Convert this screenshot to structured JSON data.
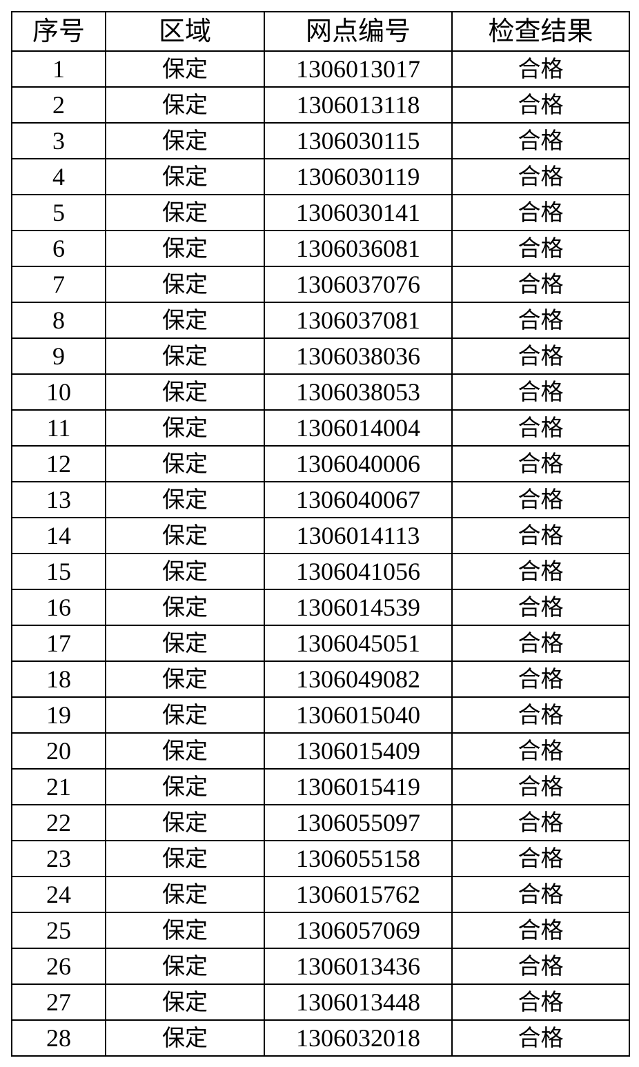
{
  "table": {
    "headers": [
      "序号",
      "区域",
      "网点编号",
      "检查结果"
    ],
    "rows": [
      [
        "1",
        "保定",
        "1306013017",
        "合格"
      ],
      [
        "2",
        "保定",
        "1306013118",
        "合格"
      ],
      [
        "3",
        "保定",
        "1306030115",
        "合格"
      ],
      [
        "4",
        "保定",
        "1306030119",
        "合格"
      ],
      [
        "5",
        "保定",
        "1306030141",
        "合格"
      ],
      [
        "6",
        "保定",
        "1306036081",
        "合格"
      ],
      [
        "7",
        "保定",
        "1306037076",
        "合格"
      ],
      [
        "8",
        "保定",
        "1306037081",
        "合格"
      ],
      [
        "9",
        "保定",
        "1306038036",
        "合格"
      ],
      [
        "10",
        "保定",
        "1306038053",
        "合格"
      ],
      [
        "11",
        "保定",
        "1306014004",
        "合格"
      ],
      [
        "12",
        "保定",
        "1306040006",
        "合格"
      ],
      [
        "13",
        "保定",
        "1306040067",
        "合格"
      ],
      [
        "14",
        "保定",
        "1306014113",
        "合格"
      ],
      [
        "15",
        "保定",
        "1306041056",
        "合格"
      ],
      [
        "16",
        "保定",
        "1306014539",
        "合格"
      ],
      [
        "17",
        "保定",
        "1306045051",
        "合格"
      ],
      [
        "18",
        "保定",
        "1306049082",
        "合格"
      ],
      [
        "19",
        "保定",
        "1306015040",
        "合格"
      ],
      [
        "20",
        "保定",
        "1306015409",
        "合格"
      ],
      [
        "21",
        "保定",
        "1306015419",
        "合格"
      ],
      [
        "22",
        "保定",
        "1306055097",
        "合格"
      ],
      [
        "23",
        "保定",
        "1306055158",
        "合格"
      ],
      [
        "24",
        "保定",
        "1306015762",
        "合格"
      ],
      [
        "25",
        "保定",
        "1306057069",
        "合格"
      ],
      [
        "26",
        "保定",
        "1306013436",
        "合格"
      ],
      [
        "27",
        "保定",
        "1306013448",
        "合格"
      ],
      [
        "28",
        "保定",
        "1306032018",
        "合格"
      ]
    ]
  }
}
